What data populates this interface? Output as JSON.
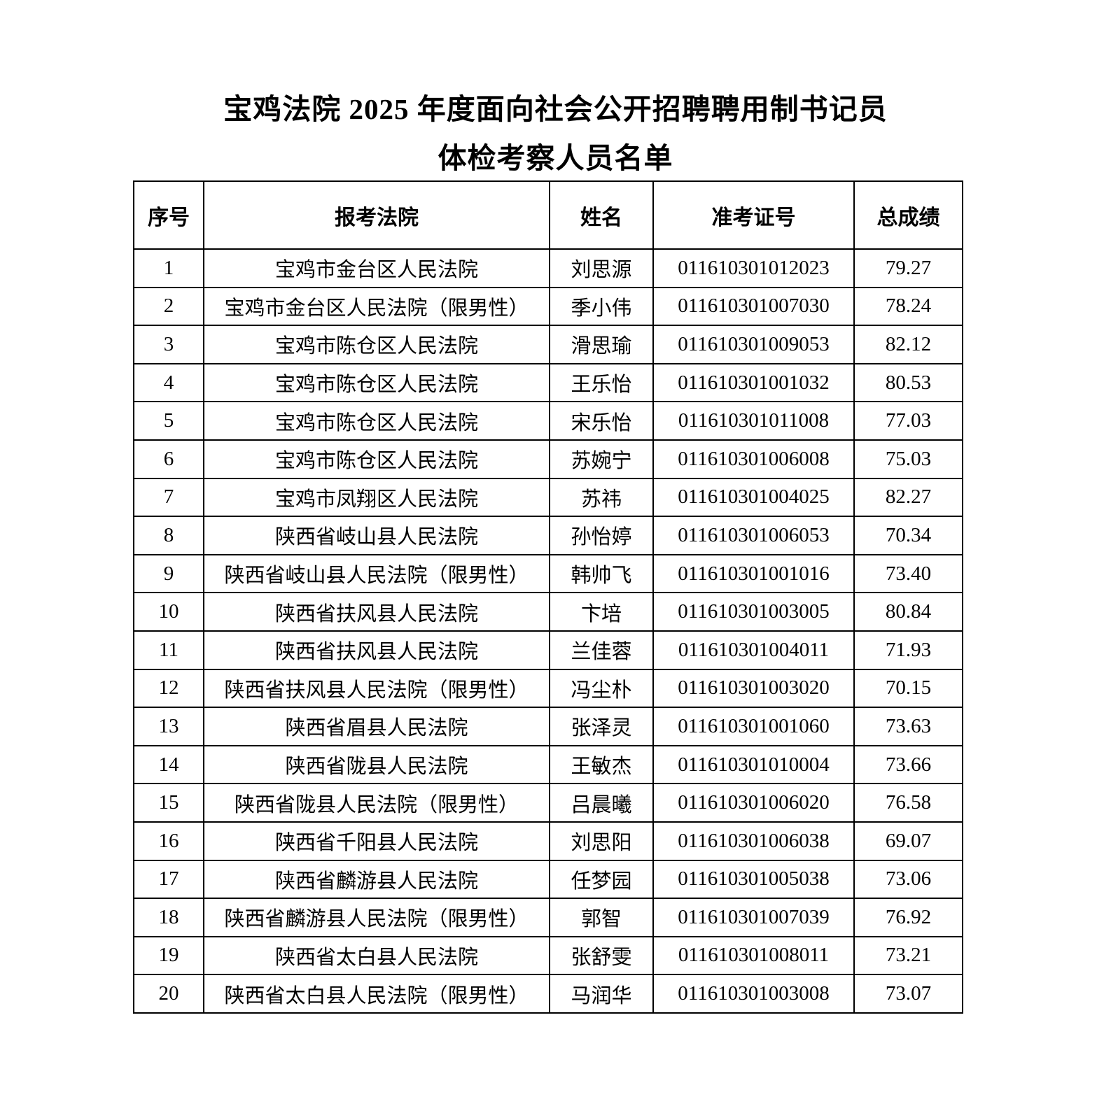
{
  "title": {
    "line1": "宝鸡法院 2025 年度面向社会公开招聘聘用制书记员",
    "line2": "体检考察人员名单"
  },
  "table": {
    "headers": [
      "序号",
      "报考法院",
      "姓名",
      "准考证号",
      "总成绩"
    ],
    "rows": [
      [
        "1",
        "宝鸡市金台区人民法院",
        "刘思源",
        "011610301012023",
        "79.27"
      ],
      [
        "2",
        "宝鸡市金台区人民法院（限男性）",
        "季小伟",
        "011610301007030",
        "78.24"
      ],
      [
        "3",
        "宝鸡市陈仓区人民法院",
        "滑思瑜",
        "011610301009053",
        "82.12"
      ],
      [
        "4",
        "宝鸡市陈仓区人民法院",
        "王乐怡",
        "011610301001032",
        "80.53"
      ],
      [
        "5",
        "宝鸡市陈仓区人民法院",
        "宋乐怡",
        "011610301011008",
        "77.03"
      ],
      [
        "6",
        "宝鸡市陈仓区人民法院",
        "苏婉宁",
        "011610301006008",
        "75.03"
      ],
      [
        "7",
        "宝鸡市凤翔区人民法院",
        "苏祎",
        "011610301004025",
        "82.27"
      ],
      [
        "8",
        "陕西省岐山县人民法院",
        "孙怡婷",
        "011610301006053",
        "70.34"
      ],
      [
        "9",
        "陕西省岐山县人民法院（限男性）",
        "韩帅飞",
        "011610301001016",
        "73.40"
      ],
      [
        "10",
        "陕西省扶风县人民法院",
        "卞培",
        "011610301003005",
        "80.84"
      ],
      [
        "11",
        "陕西省扶风县人民法院",
        "兰佳蓉",
        "011610301004011",
        "71.93"
      ],
      [
        "12",
        "陕西省扶风县人民法院（限男性）",
        "冯尘朴",
        "011610301003020",
        "70.15"
      ],
      [
        "13",
        "陕西省眉县人民法院",
        "张泽灵",
        "011610301001060",
        "73.63"
      ],
      [
        "14",
        "陕西省陇县人民法院",
        "王敏杰",
        "011610301010004",
        "73.66"
      ],
      [
        "15",
        "陕西省陇县人民法院（限男性）",
        "吕晨曦",
        "011610301006020",
        "76.58"
      ],
      [
        "16",
        "陕西省千阳县人民法院",
        "刘思阳",
        "011610301006038",
        "69.07"
      ],
      [
        "17",
        "陕西省麟游县人民法院",
        "任梦园",
        "011610301005038",
        "73.06"
      ],
      [
        "18",
        "陕西省麟游县人民法院（限男性）",
        "郭智",
        "011610301007039",
        "76.92"
      ],
      [
        "19",
        "陕西省太白县人民法院",
        "张舒雯",
        "011610301008011",
        "73.21"
      ],
      [
        "20",
        "陕西省太白县人民法院（限男性）",
        "马润华",
        "011610301003008",
        "73.07"
      ]
    ]
  }
}
